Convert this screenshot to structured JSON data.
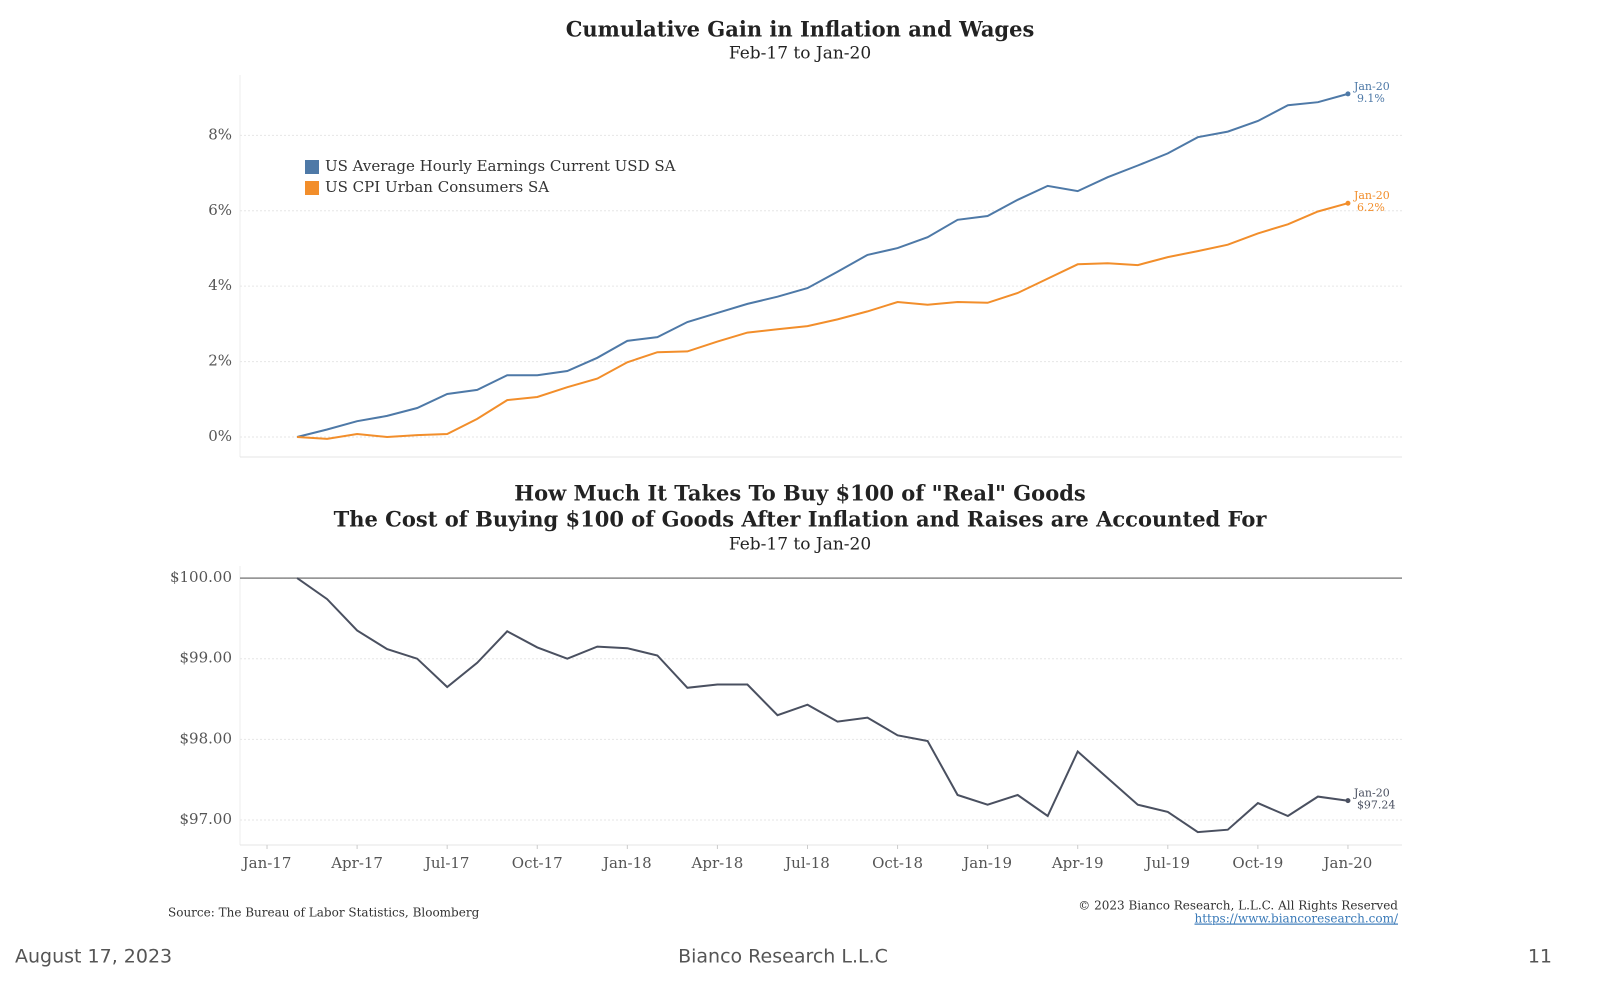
{
  "chart_data": [
    {
      "type": "line",
      "title": "Cumulative Gain in Inflation and Wages",
      "subtitle": "Feb-17 to Jan-20",
      "x": [
        "Feb-17",
        "Mar-17",
        "Apr-17",
        "May-17",
        "Jun-17",
        "Jul-17",
        "Aug-17",
        "Sep-17",
        "Oct-17",
        "Nov-17",
        "Dec-17",
        "Jan-18",
        "Feb-18",
        "Mar-18",
        "Apr-18",
        "May-18",
        "Jun-18",
        "Jul-18",
        "Aug-18",
        "Sep-18",
        "Oct-18",
        "Nov-18",
        "Dec-18",
        "Jan-19",
        "Feb-19",
        "Mar-19",
        "Apr-19",
        "May-19",
        "Jun-19",
        "Jul-19",
        "Aug-19",
        "Sep-19",
        "Oct-19",
        "Nov-19",
        "Dec-19",
        "Jan-20"
      ],
      "series": [
        {
          "name": "US Average Hourly Earnings Current USD SA",
          "color": "#4e79a7",
          "values": [
            0,
            0.2,
            0.42,
            0.56,
            0.77,
            1.14,
            1.25,
            1.64,
            1.64,
            1.75,
            2.1,
            2.55,
            2.65,
            3.05,
            3.29,
            3.53,
            3.72,
            3.95,
            4.38,
            4.83,
            5.01,
            5.3,
            5.76,
            5.86,
            6.29,
            6.66,
            6.52,
            6.89,
            7.2,
            7.52,
            7.95,
            8.1,
            8.38,
            8.8,
            8.88,
            9.1
          ],
          "value_labels": [
            null,
            null,
            null,
            null,
            null,
            null,
            null,
            null,
            null,
            null,
            null,
            null,
            null,
            null,
            null,
            null,
            null,
            null,
            null,
            null,
            null,
            null,
            null,
            null,
            null,
            null,
            null,
            null,
            null,
            null,
            null,
            null,
            null,
            null,
            null,
            "9.1%"
          ]
        },
        {
          "name": "US CPI Urban Consumers SA",
          "color": "#f28e2b",
          "values": [
            0,
            -0.05,
            0.08,
            0,
            0.05,
            0.08,
            0.48,
            0.98,
            1.06,
            1.32,
            1.55,
            1.98,
            2.25,
            2.27,
            2.53,
            2.77,
            2.86,
            2.94,
            3.12,
            3.33,
            3.58,
            3.51,
            3.58,
            3.56,
            3.82,
            4.2,
            4.58,
            4.61,
            4.56,
            4.77,
            4.93,
            5.1,
            5.4,
            5.64,
            5.98,
            6.2
          ],
          "value_labels": [
            null,
            null,
            null,
            null,
            null,
            null,
            null,
            null,
            null,
            null,
            null,
            null,
            null,
            null,
            null,
            null,
            null,
            null,
            null,
            null,
            null,
            null,
            null,
            null,
            null,
            null,
            null,
            null,
            null,
            null,
            null,
            null,
            null,
            null,
            null,
            "6.2%"
          ]
        }
      ],
      "xlim": [
        "Dec-16",
        "Mar-20"
      ],
      "ylim": [
        -0.53,
        9.6
      ],
      "yticks": [
        {
          "value": 0,
          "label": "0%"
        },
        {
          "value": 2,
          "label": "2%"
        },
        {
          "value": 4,
          "label": "4%"
        },
        {
          "value": 6,
          "label": "6%"
        },
        {
          "value": 8,
          "label": "8%"
        }
      ],
      "grid": true,
      "legend": "top-left"
    },
    {
      "type": "line",
      "title": [
        "How Much It Takes To Buy $100 of \"Real\" Goods",
        "The Cost of Buying $100 of Goods After Inflation and Raises are Accounted For"
      ],
      "subtitle": "Feb-17 to Jan-20",
      "x": [
        "Feb-17",
        "Mar-17",
        "Apr-17",
        "May-17",
        "Jun-17",
        "Jul-17",
        "Aug-17",
        "Sep-17",
        "Oct-17",
        "Nov-17",
        "Dec-17",
        "Jan-18",
        "Feb-18",
        "Mar-18",
        "Apr-18",
        "May-18",
        "Jun-18",
        "Jul-18",
        "Aug-18",
        "Sep-18",
        "Oct-18",
        "Nov-18",
        "Dec-18",
        "Jan-19",
        "Feb-19",
        "Mar-19",
        "Apr-19",
        "May-19",
        "Jun-19",
        "Jul-19",
        "Aug-19",
        "Sep-19",
        "Oct-19",
        "Nov-19",
        "Dec-19",
        "Jan-20"
      ],
      "color": "#4a5060",
      "values": [
        100,
        99.74,
        99.35,
        99.12,
        99,
        98.65,
        98.95,
        99.34,
        99.14,
        99,
        99.15,
        99.13,
        99.04,
        98.64,
        98.68,
        98.68,
        98.3,
        98.43,
        98.22,
        98.27,
        98.05,
        97.98,
        97.31,
        97.19,
        97.31,
        97.05,
        97.85,
        97.52,
        97.19,
        97.1,
        96.85,
        96.88,
        97.21,
        97.05,
        97.29,
        97.24
      ],
      "value_labels": [
        null,
        null,
        null,
        null,
        null,
        null,
        null,
        null,
        null,
        null,
        null,
        null,
        null,
        null,
        null,
        null,
        null,
        null,
        null,
        null,
        null,
        null,
        null,
        null,
        null,
        null,
        null,
        null,
        null,
        null,
        null,
        null,
        null,
        null,
        null,
        "$97.24"
      ],
      "xlim": [
        "Dec-16",
        "Mar-20"
      ],
      "xticks": [
        "Jan-17",
        "Apr-17",
        "Jul-17",
        "Oct-17",
        "Jan-18",
        "Apr-18",
        "Jul-18",
        "Oct-18",
        "Jan-19",
        "Apr-19",
        "Jul-19",
        "Oct-19",
        "Jan-20"
      ],
      "ylim": [
        96.69,
        100.15
      ],
      "yticks": [
        {
          "value": 97,
          "label": "$97.00"
        },
        {
          "value": 98,
          "label": "$98.00"
        },
        {
          "value": 99,
          "label": "$99.00"
        },
        {
          "value": 100,
          "label": "$100.00"
        }
      ],
      "baseline": 100,
      "grid": true
    }
  ],
  "source": "Source: The Bureau of Labor Statistics, Bloomberg",
  "copyright": "© 2023 Bianco Research, L.L.C. All Rights Reserved",
  "url": "https://www.biancoresearch.com/",
  "footer": {
    "date": "August 17, 2023",
    "center": "Bianco Research L.L.C",
    "page": "11"
  }
}
